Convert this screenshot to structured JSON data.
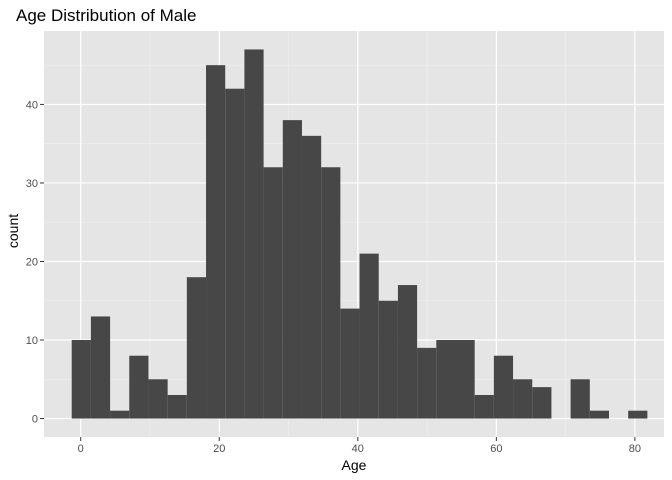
{
  "chart_data": {
    "type": "bar",
    "title": "Age Distribution of Male",
    "xlabel": "Age",
    "ylabel": "count",
    "bin_width": 2.77,
    "bins": [
      {
        "x0": -1.3,
        "count": 10
      },
      {
        "x0": 1.47,
        "count": 13
      },
      {
        "x0": 4.24,
        "count": 1
      },
      {
        "x0": 7.01,
        "count": 8
      },
      {
        "x0": 9.78,
        "count": 5
      },
      {
        "x0": 12.55,
        "count": 3
      },
      {
        "x0": 15.32,
        "count": 18
      },
      {
        "x0": 18.09,
        "count": 45
      },
      {
        "x0": 20.86,
        "count": 42
      },
      {
        "x0": 23.63,
        "count": 47
      },
      {
        "x0": 26.4,
        "count": 32
      },
      {
        "x0": 29.17,
        "count": 38
      },
      {
        "x0": 31.94,
        "count": 36
      },
      {
        "x0": 34.71,
        "count": 32
      },
      {
        "x0": 37.48,
        "count": 14
      },
      {
        "x0": 40.25,
        "count": 21
      },
      {
        "x0": 43.02,
        "count": 15
      },
      {
        "x0": 45.79,
        "count": 17
      },
      {
        "x0": 48.56,
        "count": 9
      },
      {
        "x0": 51.33,
        "count": 10
      },
      {
        "x0": 54.1,
        "count": 10
      },
      {
        "x0": 56.87,
        "count": 3
      },
      {
        "x0": 59.64,
        "count": 8
      },
      {
        "x0": 62.41,
        "count": 5
      },
      {
        "x0": 65.18,
        "count": 4
      },
      {
        "x0": 67.95,
        "count": 0
      },
      {
        "x0": 70.72,
        "count": 5
      },
      {
        "x0": 73.49,
        "count": 1
      },
      {
        "x0": 76.26,
        "count": 0
      },
      {
        "x0": 79.03,
        "count": 1
      }
    ],
    "xlim": [
      -5.3,
      84.2
    ],
    "ylim": [
      -2.35,
      49.35
    ],
    "x_ticks": [
      0,
      20,
      40,
      60,
      80
    ],
    "y_ticks": [
      0,
      10,
      20,
      30,
      40
    ],
    "grid": true,
    "legend": "none",
    "colors": {
      "bar": "#474747",
      "panel": "#e5e5e5",
      "grid_major": "#ffffff",
      "grid_minor": "#f0f0f0",
      "tick": "#333333"
    }
  }
}
